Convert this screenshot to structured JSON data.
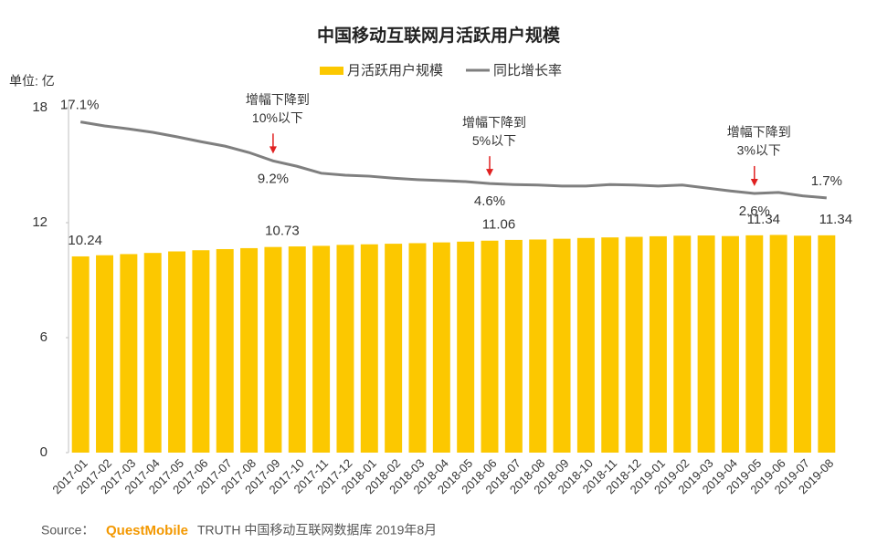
{
  "chart_data": {
    "type": "bar-line",
    "title": "中国移动互联网月活跃用户规模",
    "y_unit_label": "单位: 亿",
    "categories": [
      "2017-01",
      "2017-02",
      "2017-03",
      "2017-04",
      "2017-05",
      "2017-06",
      "2017-07",
      "2017-08",
      "2017-09",
      "2017-10",
      "2017-11",
      "2017-12",
      "2018-01",
      "2018-02",
      "2018-03",
      "2018-04",
      "2018-05",
      "2018-06",
      "2018-07",
      "2018-08",
      "2018-09",
      "2018-10",
      "2018-11",
      "2018-12",
      "2019-01",
      "2019-02",
      "2019-03",
      "2019-04",
      "2019-05",
      "2019-06",
      "2019-07",
      "2019-08"
    ],
    "series": [
      {
        "name": "月活跃用户规模",
        "type": "bar",
        "color": "#fcc800",
        "values": [
          10.24,
          10.3,
          10.36,
          10.42,
          10.5,
          10.56,
          10.62,
          10.67,
          10.73,
          10.76,
          10.79,
          10.84,
          10.87,
          10.9,
          10.93,
          10.97,
          11.01,
          11.06,
          11.1,
          11.12,
          11.16,
          11.2,
          11.23,
          11.26,
          11.29,
          11.32,
          11.33,
          11.3,
          11.34,
          11.36,
          11.32,
          11.34
        ],
        "value_labels": [
          "10.24",
          null,
          null,
          null,
          null,
          null,
          null,
          null,
          "10.73",
          null,
          null,
          null,
          null,
          null,
          null,
          null,
          null,
          "11.06",
          null,
          null,
          null,
          null,
          null,
          null,
          null,
          null,
          null,
          null,
          "11.34",
          null,
          null,
          "11.34"
        ]
      },
      {
        "name": "同比增长率",
        "type": "line",
        "color": "#7f7f7f",
        "axis": "y2",
        "values": [
          17.1,
          16.3,
          15.7,
          15.0,
          14.1,
          13.1,
          12.2,
          10.9,
          9.2,
          8.1,
          6.7,
          6.3,
          6.1,
          5.7,
          5.4,
          5.2,
          5.0,
          4.6,
          4.4,
          4.3,
          4.1,
          4.1,
          4.4,
          4.3,
          4.1,
          4.3,
          3.7,
          3.1,
          2.6,
          2.8,
          2.1,
          1.7
        ],
        "value_labels": [
          "17.1%",
          null,
          null,
          null,
          null,
          null,
          null,
          null,
          "9.2%",
          null,
          null,
          null,
          null,
          null,
          null,
          null,
          null,
          "4.6%",
          null,
          null,
          null,
          null,
          null,
          null,
          null,
          null,
          null,
          null,
          "2.6%",
          null,
          null,
          "1.7%"
        ]
      }
    ],
    "ylim": [
      0,
      18
    ],
    "yticks": [
      0,
      6,
      12,
      18
    ],
    "y2lim": [
      -50,
      20
    ],
    "annotations": [
      {
        "at": "2017-09",
        "lines": [
          "增幅下降到",
          "10%以下"
        ]
      },
      {
        "at": "2018-06",
        "lines": [
          "增幅下降到",
          "5%以下"
        ]
      },
      {
        "at": "2019-05",
        "lines": [
          "增幅下降到",
          "3%以下"
        ]
      }
    ],
    "annotation_color": "#e02020",
    "legend": "top",
    "source": {
      "prefix": "Source：",
      "brand": "QuestMobile",
      "rest": "TRUTH 中国移动互联网数据库 2019年8月"
    }
  }
}
